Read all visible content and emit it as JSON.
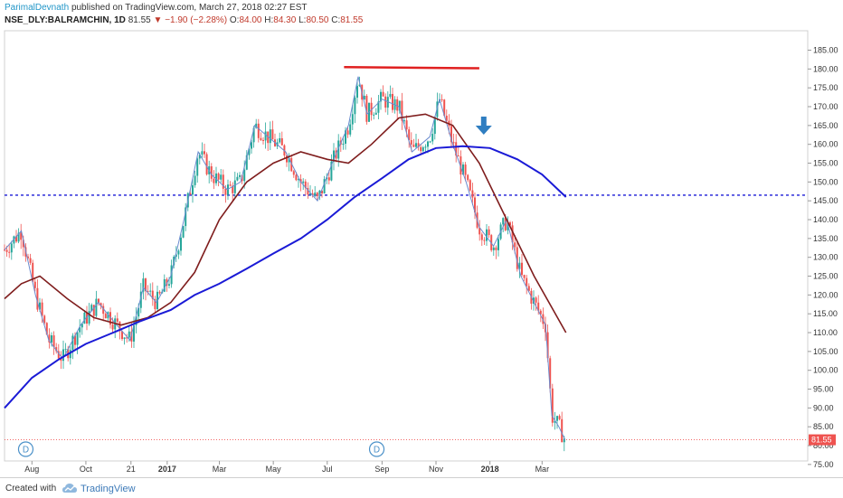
{
  "header": {
    "author": "ParimalDevnath",
    "published_text": "published on TradingView.com, March 27, 2018 02:27 EST",
    "symbol": "NSE_DLY:BALRAMCHIN, 1D",
    "last": "81.55",
    "change": "−1.90 (−2.28%)",
    "o_label": "O:",
    "o_value": "84.00",
    "h_label": "H:",
    "h_value": "84.30",
    "l_label": "L:",
    "l_value": "80.50",
    "c_label": "C:",
    "c_value": "81.55"
  },
  "footer": {
    "created_with": "Created with",
    "brand": "TradingView"
  },
  "colors": {
    "up": "#26a69a",
    "down": "#ef5350",
    "ma_short": "#7f1d1d",
    "ma_long": "#1a1ad6",
    "ma_fast": "#6b8ccf",
    "resistance": "#e02020",
    "support": "#1a1ad6",
    "arrow": "#2f7ec1"
  },
  "chart_data": {
    "type": "line",
    "title": "",
    "xlabel": "",
    "ylabel": "",
    "ylim": [
      73,
      188
    ],
    "x_ticks": [
      "Aug",
      "Oct",
      "21",
      "2017",
      "Mar",
      "May",
      "Jul",
      "Sep",
      "Nov",
      "2018",
      "Mar"
    ],
    "y_ticks": [
      75,
      80,
      85,
      90,
      95,
      100,
      105,
      110,
      115,
      120,
      125,
      130,
      135,
      140,
      145,
      150,
      155,
      160,
      165,
      170,
      175,
      180,
      185
    ],
    "last_price_label": "81.55",
    "dividend_markers": [
      "D",
      "D"
    ],
    "price_points": [
      {
        "t": "2016-07-01",
        "price": 132
      },
      {
        "t": "2016-07-20",
        "price": 137
      },
      {
        "t": "2016-08-05",
        "price": 120
      },
      {
        "t": "2016-08-20",
        "price": 108
      },
      {
        "t": "2016-09-05",
        "price": 103
      },
      {
        "t": "2016-09-25",
        "price": 112
      },
      {
        "t": "2016-10-15",
        "price": 118
      },
      {
        "t": "2016-11-05",
        "price": 112
      },
      {
        "t": "2016-11-20",
        "price": 108
      },
      {
        "t": "2016-12-05",
        "price": 122
      },
      {
        "t": "2016-12-20",
        "price": 118
      },
      {
        "t": "2017-01-05",
        "price": 125
      },
      {
        "t": "2017-01-20",
        "price": 140
      },
      {
        "t": "2017-02-05",
        "price": 158
      },
      {
        "t": "2017-02-20",
        "price": 152
      },
      {
        "t": "2017-03-10",
        "price": 148
      },
      {
        "t": "2017-03-25",
        "price": 150
      },
      {
        "t": "2017-04-10",
        "price": 165
      },
      {
        "t": "2017-04-25",
        "price": 162
      },
      {
        "t": "2017-05-15",
        "price": 158
      },
      {
        "t": "2017-06-01",
        "price": 150
      },
      {
        "t": "2017-06-20",
        "price": 145
      },
      {
        "t": "2017-07-10",
        "price": 157
      },
      {
        "t": "2017-07-25",
        "price": 165
      },
      {
        "t": "2017-08-05",
        "price": 178
      },
      {
        "t": "2017-08-15",
        "price": 168
      },
      {
        "t": "2017-09-01",
        "price": 172
      },
      {
        "t": "2017-09-20",
        "price": 170
      },
      {
        "t": "2017-10-05",
        "price": 158
      },
      {
        "t": "2017-10-25",
        "price": 162
      },
      {
        "t": "2017-11-05",
        "price": 172
      },
      {
        "t": "2017-11-20",
        "price": 160
      },
      {
        "t": "2017-12-05",
        "price": 150
      },
      {
        "t": "2017-12-20",
        "price": 138
      },
      {
        "t": "2018-01-05",
        "price": 133
      },
      {
        "t": "2018-01-20",
        "price": 140
      },
      {
        "t": "2018-02-05",
        "price": 125
      },
      {
        "t": "2018-02-20",
        "price": 118
      },
      {
        "t": "2018-03-05",
        "price": 112
      },
      {
        "t": "2018-03-12",
        "price": 88
      },
      {
        "t": "2018-03-20",
        "price": 85
      },
      {
        "t": "2018-03-27",
        "price": 81.55
      }
    ],
    "series": [
      {
        "points": [
          {
            "t": "2016-07-01",
            "v": 119
          },
          {
            "t": "2016-07-20",
            "v": 123
          },
          {
            "t": "2016-08-10",
            "v": 125
          },
          {
            "t": "2016-09-10",
            "v": 119
          },
          {
            "t": "2016-10-10",
            "v": 114
          },
          {
            "t": "2016-11-10",
            "v": 112
          },
          {
            "t": "2016-12-10",
            "v": 114
          },
          {
            "t": "2017-01-05",
            "v": 118
          },
          {
            "t": "2017-02-01",
            "v": 126
          },
          {
            "t": "2017-03-01",
            "v": 140
          },
          {
            "t": "2017-04-01",
            "v": 150
          },
          {
            "t": "2017-05-01",
            "v": 155
          },
          {
            "t": "2017-06-01",
            "v": 158
          },
          {
            "t": "2017-07-01",
            "v": 156
          },
          {
            "t": "2017-07-25",
            "v": 155
          },
          {
            "t": "2017-08-20",
            "v": 160
          },
          {
            "t": "2017-09-20",
            "v": 167
          },
          {
            "t": "2017-10-20",
            "v": 168
          },
          {
            "t": "2017-11-20",
            "v": 165
          },
          {
            "t": "2017-12-20",
            "v": 155
          },
          {
            "t": "2018-01-20",
            "v": 140
          },
          {
            "t": "2018-02-20",
            "v": 125
          },
          {
            "t": "2018-03-28",
            "v": 110
          }
        ]
      },
      {
        "points": [
          {
            "t": "2016-07-01",
            "v": 90
          },
          {
            "t": "2016-08-01",
            "v": 98
          },
          {
            "t": "2016-09-01",
            "v": 103
          },
          {
            "t": "2016-10-01",
            "v": 107
          },
          {
            "t": "2016-11-01",
            "v": 110
          },
          {
            "t": "2016-12-01",
            "v": 113
          },
          {
            "t": "2017-01-05",
            "v": 116
          },
          {
            "t": "2017-02-01",
            "v": 120
          },
          {
            "t": "2017-03-01",
            "v": 123
          },
          {
            "t": "2017-04-01",
            "v": 127
          },
          {
            "t": "2017-05-01",
            "v": 131
          },
          {
            "t": "2017-06-01",
            "v": 135
          },
          {
            "t": "2017-07-01",
            "v": 140
          },
          {
            "t": "2017-08-01",
            "v": 146
          },
          {
            "t": "2017-09-01",
            "v": 151
          },
          {
            "t": "2017-10-01",
            "v": 156
          },
          {
            "t": "2017-11-01",
            "v": 159
          },
          {
            "t": "2017-12-01",
            "v": 159.5
          },
          {
            "t": "2018-01-01",
            "v": 159
          },
          {
            "t": "2018-02-01",
            "v": 156
          },
          {
            "t": "2018-03-01",
            "v": 152
          },
          {
            "t": "2018-03-28",
            "v": 146
          }
        ]
      }
    ],
    "annotations": [
      {
        "type": "resistance_line",
        "t_start": "2017-07-20",
        "t_end": "2017-12-20",
        "v_start": 180.5,
        "v_end": 180.2
      },
      {
        "type": "support_line",
        "v": 146.5
      },
      {
        "type": "arrow_down",
        "t": "2017-12-25",
        "v": 164
      }
    ]
  }
}
